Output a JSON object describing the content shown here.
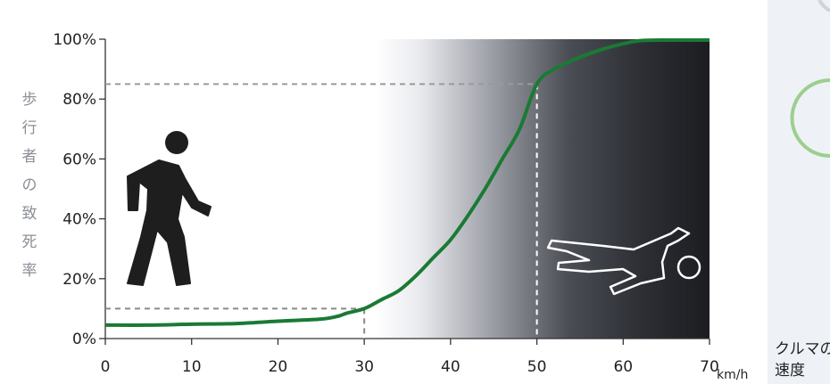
{
  "chart_data": {
    "type": "line",
    "x": [
      0,
      5,
      10,
      15,
      20,
      25,
      27,
      28,
      30,
      32,
      34,
      36,
      38,
      40,
      42,
      44,
      46,
      48,
      50,
      52,
      55,
      58,
      60,
      62,
      65,
      70
    ],
    "series": [
      {
        "values": [
          4.5,
          4.5,
          4.8,
          5,
          5.8,
          6.5,
          7.5,
          8.5,
          10,
          13,
          16,
          21,
          27,
          33,
          41,
          50,
          60,
          70,
          85,
          90,
          94,
          97,
          98.5,
          99.5,
          99.7,
          99.7
        ],
        "color": "#1a7a34"
      }
    ],
    "xticks": [
      "0",
      "10",
      "20",
      "30",
      "40",
      "50",
      "60",
      "70"
    ],
    "yticks": [
      "0%",
      "20%",
      "40%",
      "60%",
      "80%",
      "100%"
    ],
    "xlim": [
      0,
      70
    ],
    "ylim": [
      0,
      100
    ],
    "ylabel": "歩行者の致死率",
    "xlabel": "クルマの速度",
    "x_unit": "km/h",
    "reference_lines": [
      {
        "x": 30,
        "y": 10
      },
      {
        "x": 50,
        "y": 85
      }
    ],
    "background": "gradient white to dark from about 27 km/h to 70 km/h",
    "grid": false,
    "legend": "none"
  },
  "icons": [
    "walking-pedestrian-icon",
    "fallen-person-icon"
  ]
}
